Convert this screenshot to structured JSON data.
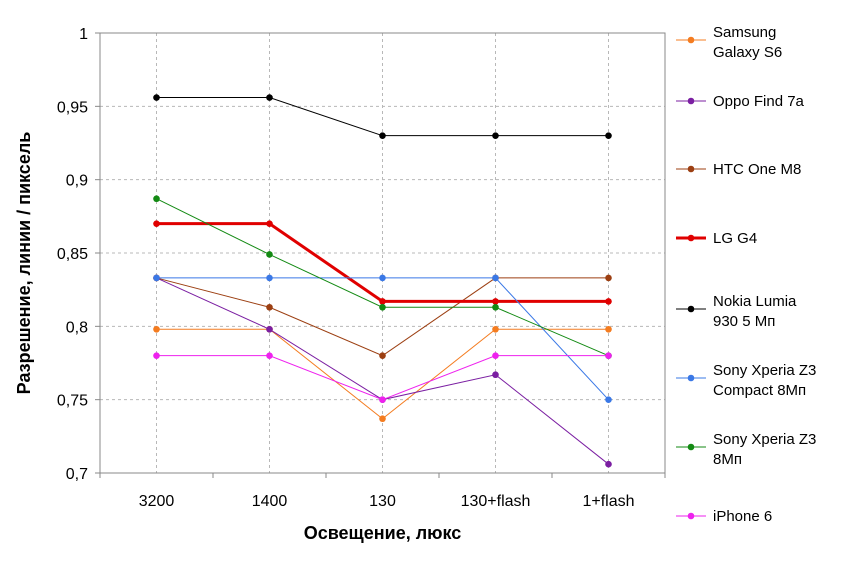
{
  "chart_data": {
    "type": "line",
    "xlabel": "Освещение, люкс",
    "ylabel": "Разрешение, линии / пиксель",
    "categories": [
      "3200",
      "1400",
      "130",
      "130+flash",
      "1+flash"
    ],
    "ylim": [
      0.7,
      1.0
    ],
    "yticks": [
      0.7,
      0.75,
      0.8,
      0.85,
      0.9,
      0.95,
      1.0
    ],
    "ytick_labels": [
      "0,7",
      "0,75",
      "0,8",
      "0,85",
      "0,9",
      "0,95",
      "1"
    ],
    "grid": "dashed gray",
    "legend_position": "right",
    "series": [
      {
        "name": "Samsung Galaxy S6",
        "legend_lines": [
          "Samsung",
          "Galaxy S6"
        ],
        "color": "#f47c20",
        "bold": false,
        "values": [
          0.798,
          0.798,
          0.737,
          0.798,
          0.798
        ]
      },
      {
        "name": "Oppo Find 7a",
        "legend_lines": [
          "Oppo Find 7a"
        ],
        "color": "#7b1fa2",
        "bold": false,
        "values": [
          0.833,
          0.798,
          0.75,
          0.767,
          0.706
        ]
      },
      {
        "name": "HTC One M8",
        "legend_lines": [
          "HTC One M8"
        ],
        "color": "#9c3f12",
        "bold": false,
        "values": [
          0.833,
          0.813,
          0.78,
          0.833,
          0.833
        ]
      },
      {
        "name": "LG G4",
        "legend_lines": [
          "LG G4"
        ],
        "color": "#e00000",
        "bold": true,
        "values": [
          0.87,
          0.87,
          0.817,
          0.817,
          0.817
        ]
      },
      {
        "name": "Nokia Lumia 930 5 Мп",
        "legend_lines": [
          "Nokia Lumia",
          "930 5 Мп"
        ],
        "color": "#000000",
        "bold": false,
        "values": [
          0.956,
          0.956,
          0.93,
          0.93,
          0.93
        ]
      },
      {
        "name": "Sony Xperia Z3 Compact 8Мп",
        "legend_lines": [
          "Sony Xperia Z3",
          "Compact 8Мп"
        ],
        "color": "#3a78e6",
        "bold": false,
        "values": [
          0.833,
          0.833,
          0.833,
          0.833,
          0.75
        ]
      },
      {
        "name": "Sony Xperia Z3 8Мп",
        "legend_lines": [
          "Sony Xperia Z3",
          "8Мп"
        ],
        "color": "#138a13",
        "bold": false,
        "values": [
          0.887,
          0.849,
          0.813,
          0.813,
          0.78
        ]
      },
      {
        "name": "iPhone 6",
        "legend_lines": [
          "iPhone 6"
        ],
        "color": "#ee22ee",
        "bold": false,
        "values": [
          0.78,
          0.78,
          0.75,
          0.78,
          0.78
        ]
      }
    ]
  }
}
